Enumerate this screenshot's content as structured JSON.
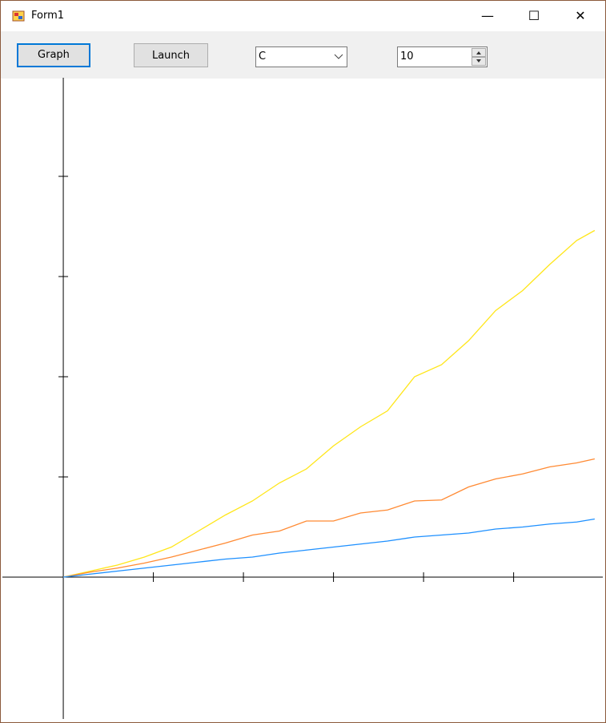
{
  "window": {
    "title": "Form1"
  },
  "toolbar": {
    "graph_button": "Graph",
    "launch_button": "Launch",
    "combo_value": "C",
    "numeric_value": "10"
  },
  "chart_data": {
    "type": "line",
    "x": [
      0,
      0.3,
      0.6,
      0.9,
      1.2,
      1.5,
      1.8,
      2.1,
      2.4,
      2.7,
      3.0,
      3.3,
      3.6,
      3.9,
      4.2,
      4.5,
      4.8,
      5.1,
      5.4,
      5.7,
      5.9
    ],
    "series": [
      {
        "color": "#ffe619",
        "values": [
          0,
          0.06,
          0.12,
          0.2,
          0.3,
          0.46,
          0.62,
          0.76,
          0.94,
          1.08,
          1.31,
          1.5,
          1.66,
          2.0,
          2.12,
          2.36,
          2.66,
          2.86,
          3.12,
          3.36,
          3.46
        ]
      },
      {
        "color": "#ff8a33",
        "values": [
          0,
          0.05,
          0.09,
          0.14,
          0.2,
          0.27,
          0.34,
          0.42,
          0.46,
          0.56,
          0.56,
          0.64,
          0.67,
          0.76,
          0.77,
          0.9,
          0.98,
          1.03,
          1.1,
          1.14,
          1.18
        ]
      },
      {
        "color": "#1e90ff",
        "values": [
          0,
          0.03,
          0.06,
          0.09,
          0.12,
          0.15,
          0.18,
          0.2,
          0.24,
          0.27,
          0.3,
          0.33,
          0.36,
          0.4,
          0.42,
          0.44,
          0.48,
          0.5,
          0.53,
          0.55,
          0.58
        ]
      }
    ],
    "xlim": [
      -0.676,
      5.99
    ],
    "ylim": [
      -1.416,
      4.984
    ],
    "xticks": [
      1,
      2,
      3,
      4,
      5
    ],
    "yticks": [
      1,
      2,
      3,
      4
    ],
    "grid": false
  }
}
